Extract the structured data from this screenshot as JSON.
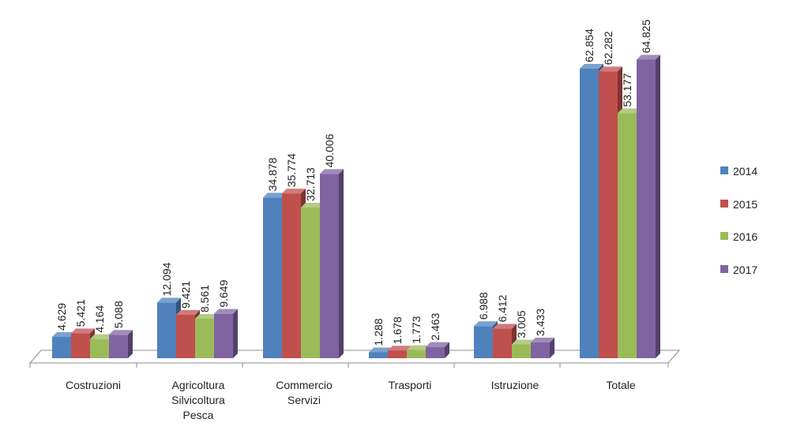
{
  "chart_data": {
    "type": "bar",
    "categories": [
      [
        "Costruzioni"
      ],
      [
        "Agricoltura",
        "Silvicoltura",
        "Pesca"
      ],
      [
        "Commercio",
        "Servizi"
      ],
      [
        "Trasporti"
      ],
      [
        "Istruzione"
      ],
      [
        "Totale"
      ]
    ],
    "series": [
      {
        "name": "2014",
        "color": "#4F81BD",
        "values": [
          4.629,
          12.094,
          34.878,
          1.288,
          6.988,
          62.854
        ],
        "labels": [
          "4.629",
          "12.094",
          "34.878",
          "1.288",
          "6.988",
          "62.854"
        ]
      },
      {
        "name": "2015",
        "color": "#C0504D",
        "values": [
          5.421,
          9.421,
          35.774,
          1.678,
          6.412,
          62.282
        ],
        "labels": [
          "5.421",
          "9.421",
          "35.774",
          "1.678",
          "6.412",
          "62.282"
        ]
      },
      {
        "name": "2016",
        "color": "#9BBB59",
        "values": [
          4.164,
          8.561,
          32.713,
          1.773,
          3.005,
          53.177
        ],
        "labels": [
          "4.164",
          "8.561",
          "32.713",
          "1.773",
          "3.005",
          "53.177"
        ]
      },
      {
        "name": "2017",
        "color": "#8064A2",
        "values": [
          5.088,
          9.649,
          40.006,
          2.463,
          3.433,
          64.825
        ],
        "labels": [
          "5.088",
          "9.649",
          "40.006",
          "2.463",
          "3.433",
          "64.825"
        ]
      }
    ],
    "ylim": [
      0,
      70
    ],
    "grid": false,
    "legend_position": "right"
  }
}
